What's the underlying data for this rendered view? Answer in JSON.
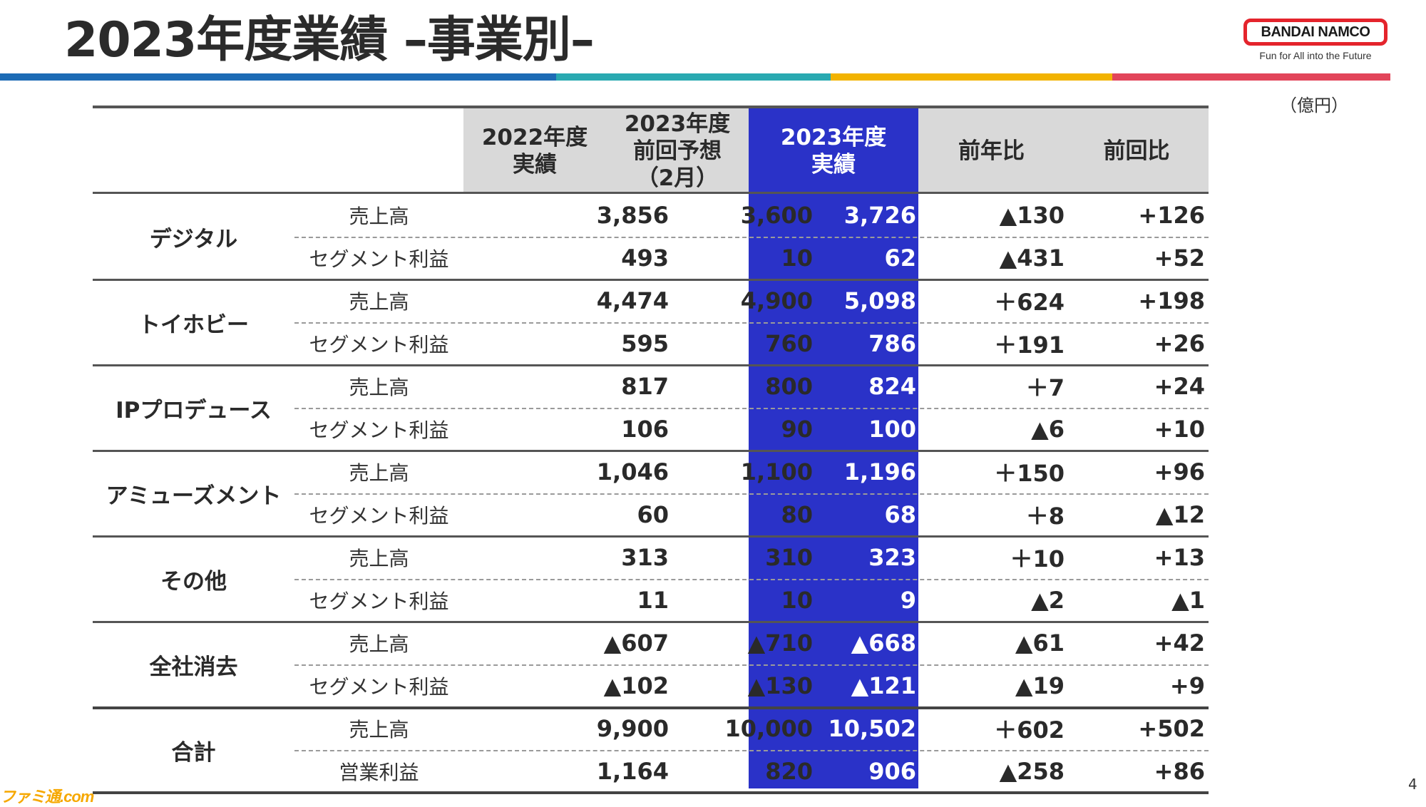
{
  "title": "2023年度業績 –事業別–",
  "brand": {
    "logo_text": "BANDAI NAMCO",
    "tagline": "Fun for All into the Future"
  },
  "stripe_colors": [
    "#1d6bb5",
    "#29a9b1",
    "#f2b300",
    "#e2455a"
  ],
  "unit": "（億円）",
  "page_number": "4",
  "watermark": "ファミ通.com",
  "table": {
    "headers": [
      [
        "2022年度",
        "実績"
      ],
      [
        "2023年度",
        "前回予想",
        "（2月）"
      ],
      [
        "2023年度",
        "実績"
      ],
      [
        "前年比"
      ],
      [
        "前回比"
      ]
    ],
    "segments": [
      {
        "name": "デジタル",
        "rows": [
          {
            "metric": "売上高",
            "values": [
              "3,856",
              "3,600",
              "3,726",
              "▲130",
              "+126"
            ]
          },
          {
            "metric": "セグメント利益",
            "values": [
              "493",
              "10",
              "62",
              "▲431",
              "+52"
            ]
          }
        ]
      },
      {
        "name": "トイホビー",
        "rows": [
          {
            "metric": "売上高",
            "values": [
              "4,474",
              "4,900",
              "5,098",
              "＋624",
              "+198"
            ]
          },
          {
            "metric": "セグメント利益",
            "values": [
              "595",
              "760",
              "786",
              "＋191",
              "+26"
            ]
          }
        ]
      },
      {
        "name": "IPプロデュース",
        "rows": [
          {
            "metric": "売上高",
            "values": [
              "817",
              "800",
              "824",
              "＋7",
              "+24"
            ]
          },
          {
            "metric": "セグメント利益",
            "values": [
              "106",
              "90",
              "100",
              "▲6",
              "+10"
            ]
          }
        ]
      },
      {
        "name": "アミューズメント",
        "rows": [
          {
            "metric": "売上高",
            "values": [
              "1,046",
              "1,100",
              "1,196",
              "＋150",
              "+96"
            ]
          },
          {
            "metric": "セグメント利益",
            "values": [
              "60",
              "80",
              "68",
              "＋8",
              "▲12"
            ]
          }
        ]
      },
      {
        "name": "その他",
        "rows": [
          {
            "metric": "売上高",
            "values": [
              "313",
              "310",
              "323",
              "＋10",
              "+13"
            ]
          },
          {
            "metric": "セグメント利益",
            "values": [
              "11",
              "10",
              "9",
              "▲2",
              "▲1"
            ]
          }
        ]
      },
      {
        "name": "全社消去",
        "rows": [
          {
            "metric": "売上高",
            "values": [
              "▲607",
              "▲710",
              "▲668",
              "▲61",
              "+42"
            ]
          },
          {
            "metric": "セグメント利益",
            "values": [
              "▲102",
              "▲130",
              "▲121",
              "▲19",
              "+9"
            ]
          }
        ]
      },
      {
        "name": "合計",
        "rows": [
          {
            "metric": "売上高",
            "values": [
              "9,900",
              "10,000",
              "10,502",
              "＋602",
              "+502"
            ]
          },
          {
            "metric": "営業利益",
            "values": [
              "1,164",
              "820",
              "906",
              "▲258",
              "+86"
            ]
          }
        ]
      }
    ]
  }
}
